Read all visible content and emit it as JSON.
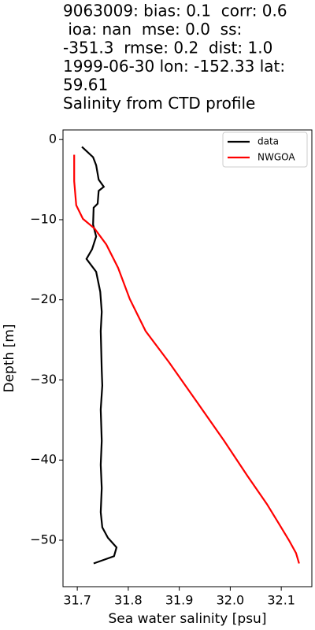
{
  "chart_data": {
    "type": "line",
    "title": [
      "9063009: bias: 0.1  corr: 0.6",
      " ioa: nan  mse: 0.0  ss:",
      "-351.3  rmse: 0.2  dist: 1.0",
      "1999-06-30 lon: -152.33 lat:",
      "59.61",
      "Salinity from CTD profile"
    ],
    "x_label": "Sea water salinity [psu]",
    "y_label": "Depth [m]",
    "xlim": [
      31.672,
      32.16
    ],
    "ylim": [
      -55.8,
      1.2
    ],
    "xticks": [
      31.7,
      31.8,
      31.9,
      {
        "value": 32.0,
        "label": "32.0"
      },
      32.1
    ],
    "yticks": [
      0,
      {
        "value": -10,
        "label": "−10"
      },
      {
        "value": -20,
        "label": "−20"
      },
      {
        "value": -30,
        "label": "−30"
      },
      {
        "value": -40,
        "label": "−40"
      },
      {
        "value": -50,
        "label": "−50"
      }
    ],
    "legend": "upper right",
    "series": [
      {
        "name": "data",
        "color": "#000000",
        "x": [
          31.709,
          31.731,
          31.737,
          31.742,
          31.752,
          31.742,
          31.74,
          31.732,
          31.731,
          31.737,
          31.729,
          31.718,
          31.737,
          31.745,
          31.748,
          31.746,
          31.748,
          31.749,
          31.746,
          31.748,
          31.746,
          31.748,
          31.746,
          31.749,
          31.76,
          31.777,
          31.772,
          31.732
        ],
        "values": [
          -0.9,
          -2.2,
          -3.2,
          -5.0,
          -5.9,
          -6.4,
          -8.0,
          -8.5,
          -10.6,
          -12.1,
          -13.7,
          -14.9,
          -16.5,
          -19.0,
          -21.5,
          -23.9,
          -28.8,
          -30.7,
          -33.7,
          -37.6,
          -40.6,
          -43.5,
          -46.5,
          -48.4,
          -49.7,
          -50.9,
          -52.0,
          -52.9
        ]
      },
      {
        "name": "NWGOA",
        "color": "#ff0000",
        "x": [
          31.694,
          31.694,
          31.698,
          31.711,
          31.734,
          31.757,
          31.78,
          31.803,
          31.834,
          31.88,
          31.934,
          31.988,
          32.034,
          32.072,
          32.095,
          32.115,
          32.129,
          32.135
        ],
        "values": [
          -1.9,
          -5.2,
          -8.2,
          -9.9,
          -11.1,
          -13.1,
          -16.0,
          -19.9,
          -23.9,
          -27.8,
          -32.7,
          -37.6,
          -42.0,
          -45.5,
          -47.9,
          -50.0,
          -51.6,
          -52.9
        ]
      }
    ]
  }
}
